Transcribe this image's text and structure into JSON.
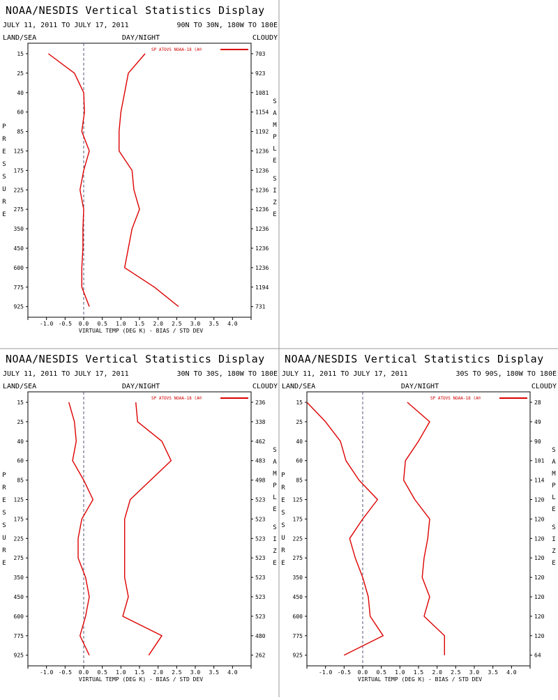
{
  "colors": {
    "series": "#dd0000",
    "axis": "#000000",
    "zero": "#555577",
    "separator": "#999999"
  },
  "panels": [
    {
      "title": "NOAA/NESDIS Vertical Statistics Display",
      "date_range": "JULY 11, 2011 TO JULY 17, 2011",
      "region": "90N TO 30N, 180W TO 180E",
      "land_sea": "LAND/SEA",
      "day_night": "DAY/NIGHT",
      "cloudy": "CLOUDY",
      "legend": "SP ATOVS NOAA-18 (A®",
      "y_label": "PRESSURE",
      "right_label": "SAMPLE SIZE",
      "x_label": "VIRTUAL TEMP (DEG K) - BIAS / STD DEV",
      "chart_data": {
        "type": "line",
        "pressure_levels": [
          "15",
          "25",
          "40",
          "60",
          "85",
          "125",
          "175",
          "225",
          "275",
          "350",
          "450",
          "600",
          "775",
          "925"
        ],
        "xlim": [
          -1.5,
          4.5
        ],
        "x_ticks": [
          "-1.0",
          "-0.5",
          "0.0",
          "0.5",
          "1.0",
          "1.5",
          "2.0",
          "2.5",
          "3.0",
          "3.5",
          "4.0"
        ],
        "sample_size": [
          "703",
          "923",
          "1081",
          "1154",
          "1192",
          "1236",
          "1236",
          "1236",
          "1236",
          "1236",
          "1236",
          "1236",
          "1194",
          "731"
        ],
        "series": [
          {
            "values": [
              -0.95,
              -0.25,
              0.0,
              0.02,
              -0.05,
              0.15,
              0.0,
              -0.1,
              0.0,
              -0.02,
              -0.02,
              -0.05,
              -0.05,
              0.15
            ]
          },
          {
            "values": [
              1.65,
              1.2,
              1.1,
              1.0,
              0.95,
              0.95,
              1.3,
              1.35,
              1.5,
              1.3,
              1.2,
              1.1,
              1.9,
              2.55
            ]
          }
        ]
      }
    },
    {
      "title": "NOAA/NESDIS Vertical Statistics Display",
      "date_range": "JULY 11, 2011 TO JULY 17, 2011",
      "region": "30N TO 30S, 180W TO 180E",
      "land_sea": "LAND/SEA",
      "day_night": "DAY/NIGHT",
      "cloudy": "CLOUDY",
      "legend": "SP ATOVS NOAA-18 (A®",
      "y_label": "PRESSURE",
      "right_label": "SAMPLE SIZE",
      "x_label": "VIRTUAL TEMP (DEG K) - BIAS / STD DEV",
      "chart_data": {
        "type": "line",
        "pressure_levels": [
          "15",
          "25",
          "40",
          "60",
          "85",
          "125",
          "175",
          "225",
          "275",
          "350",
          "450",
          "600",
          "775",
          "925"
        ],
        "xlim": [
          -1.5,
          4.5
        ],
        "x_ticks": [
          "-1.0",
          "-0.5",
          "0.0",
          "0.5",
          "1.0",
          "1.5",
          "2.0",
          "2.5",
          "3.0",
          "3.5",
          "4.0"
        ],
        "sample_size": [
          "236",
          "338",
          "462",
          "483",
          "498",
          "523",
          "523",
          "523",
          "523",
          "523",
          "523",
          "523",
          "480",
          "262"
        ],
        "series": [
          {
            "values": [
              -0.4,
              -0.25,
              -0.2,
              -0.3,
              0.0,
              0.25,
              -0.05,
              -0.15,
              -0.15,
              0.05,
              0.15,
              0.05,
              -0.1,
              0.15
            ]
          },
          {
            "values": [
              1.4,
              1.45,
              2.1,
              2.35,
              1.8,
              1.25,
              1.1,
              1.1,
              1.1,
              1.1,
              1.2,
              1.05,
              2.1,
              1.75
            ]
          }
        ]
      }
    },
    {
      "title": "NOAA/NESDIS Vertical Statistics Display",
      "date_range": "JULY 11, 2011 TO JULY 17, 2011",
      "region": "30S TO 90S, 180W TO 180E",
      "land_sea": "LAND/SEA",
      "day_night": "DAY/NIGHT",
      "cloudy": "CLOUDY",
      "legend": "SP ATOVS NOAA-18 (A®",
      "y_label": "PRESSURE",
      "right_label": "SAMPLE SIZE",
      "x_label": "VIRTUAL TEMP (DEG K) - BIAS / STD DEV",
      "chart_data": {
        "type": "line",
        "pressure_levels": [
          "15",
          "25",
          "40",
          "60",
          "85",
          "125",
          "175",
          "225",
          "275",
          "350",
          "450",
          "600",
          "775",
          "925"
        ],
        "xlim": [
          -1.5,
          4.5
        ],
        "x_ticks": [
          "-1.0",
          "-0.5",
          "0.0",
          "0.5",
          "1.0",
          "1.5",
          "2.0",
          "2.5",
          "3.0",
          "3.5",
          "4.0"
        ],
        "sample_size": [
          "28",
          "49",
          "90",
          "101",
          "114",
          "120",
          "120",
          "120",
          "120",
          "120",
          "120",
          "120",
          "120",
          "64"
        ],
        "series": [
          {
            "values": [
              -1.5,
              -1.0,
              -0.6,
              -0.45,
              -0.1,
              0.4,
              0.0,
              -0.35,
              -0.2,
              0.0,
              0.15,
              0.2,
              0.55,
              -0.5
            ]
          },
          {
            "values": [
              1.2,
              1.8,
              1.5,
              1.15,
              1.1,
              1.4,
              1.8,
              1.75,
              1.65,
              1.6,
              1.8,
              1.65,
              2.2,
              2.2
            ]
          }
        ]
      }
    }
  ]
}
